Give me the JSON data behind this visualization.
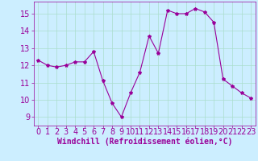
{
  "x": [
    0,
    1,
    2,
    3,
    4,
    5,
    6,
    7,
    8,
    9,
    10,
    11,
    12,
    13,
    14,
    15,
    16,
    17,
    18,
    19,
    20,
    21,
    22,
    23
  ],
  "y": [
    12.3,
    12.0,
    11.9,
    12.0,
    12.2,
    12.2,
    12.8,
    11.1,
    9.8,
    9.0,
    10.4,
    11.6,
    13.7,
    12.7,
    15.2,
    15.0,
    15.0,
    15.3,
    15.1,
    14.5,
    11.2,
    10.8,
    10.4,
    10.1
  ],
  "line_color": "#990099",
  "marker": "*",
  "marker_size": 3,
  "bg_color": "#cceeff",
  "grid_color": "#aaddcc",
  "xlabel": "Windchill (Refroidissement éolien,°C)",
  "xlabel_color": "#990099",
  "xlabel_fontsize": 7,
  "tick_color": "#990099",
  "tick_fontsize": 7,
  "yticks": [
    9,
    10,
    11,
    12,
    13,
    14,
    15
  ],
  "xticks": [
    0,
    1,
    2,
    3,
    4,
    5,
    6,
    7,
    8,
    9,
    10,
    11,
    12,
    13,
    14,
    15,
    16,
    17,
    18,
    19,
    20,
    21,
    22,
    23
  ],
  "ylim": [
    8.5,
    15.7
  ],
  "xlim": [
    -0.5,
    23.5
  ]
}
